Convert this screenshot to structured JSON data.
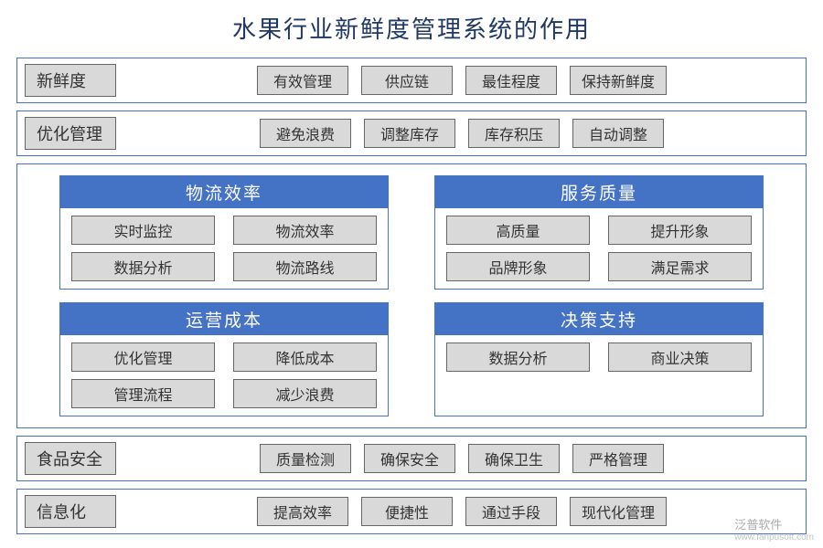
{
  "title": "水果行业新鲜度管理系统的作用",
  "colors": {
    "border": "#4472c4",
    "header_bg": "#4472c4",
    "header_fg": "#ffffff",
    "tag_bg": "#d9d9d9",
    "tag_border": "#666666",
    "title_color": "#203864",
    "background": "#ffffff"
  },
  "rows_top": [
    {
      "label": "新鲜度",
      "tags": [
        "有效管理",
        "供应链",
        "最佳程度",
        "保持新鲜度"
      ]
    },
    {
      "label": "优化管理",
      "tags": [
        "避免浪费",
        "调整库存",
        "库存积压",
        "自动调整"
      ]
    }
  ],
  "quads": [
    [
      {
        "header": "物流效率",
        "items": [
          "实时监控",
          "物流效率",
          "数据分析",
          "物流路线"
        ]
      },
      {
        "header": "服务质量",
        "items": [
          "高质量",
          "提升形象",
          "品牌形象",
          "满足需求"
        ]
      }
    ],
    [
      {
        "header": "运营成本",
        "items": [
          "优化管理",
          "降低成本",
          "管理流程",
          "减少浪费"
        ]
      },
      {
        "header": "决策支持",
        "items": [
          "数据分析",
          "商业决策"
        ]
      }
    ]
  ],
  "rows_bottom": [
    {
      "label": "食品安全",
      "tags": [
        "质量检测",
        "确保安全",
        "确保卫生",
        "严格管理"
      ]
    },
    {
      "label": "信息化",
      "tags": [
        "提高效率",
        "便捷性",
        "通过手段",
        "现代化管理"
      ]
    }
  ],
  "watermark": {
    "brand": "泛普软件",
    "url": "www.fanpusoft.com"
  }
}
